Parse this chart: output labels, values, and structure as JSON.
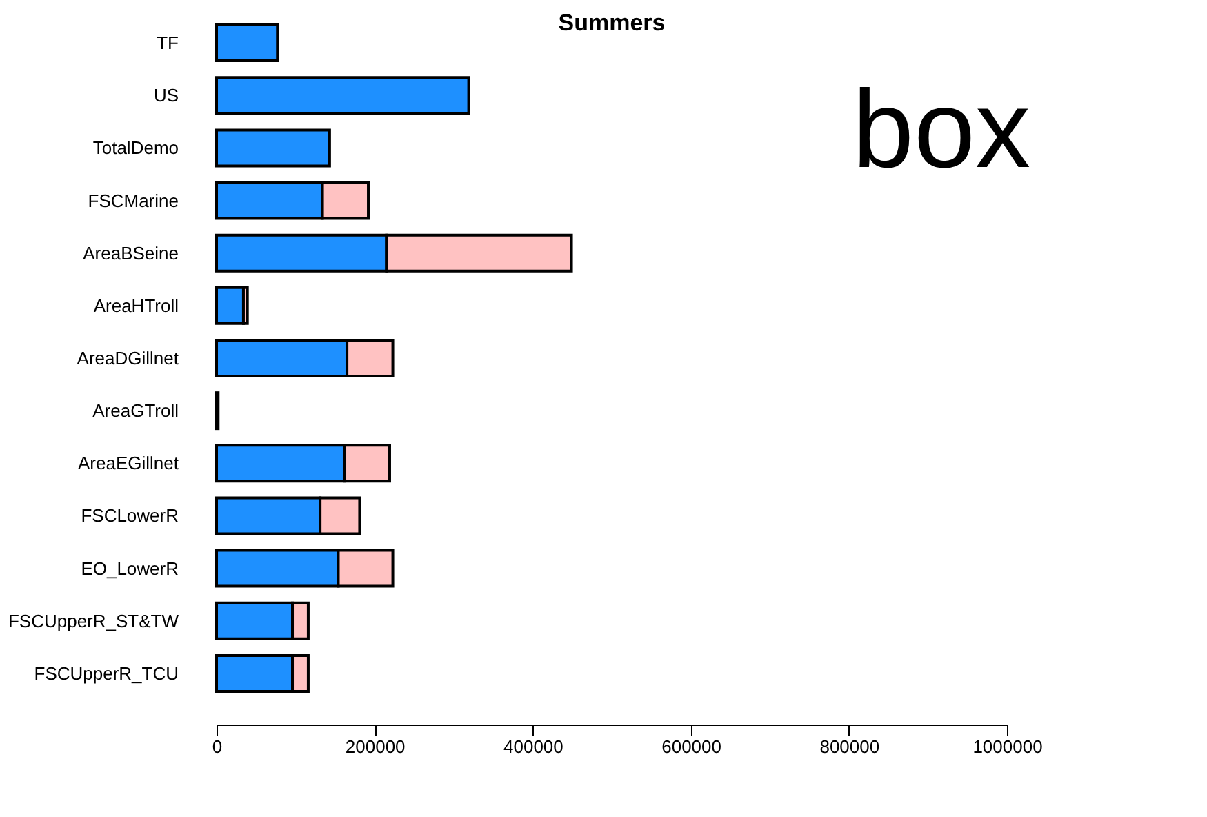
{
  "chart_data": {
    "type": "bar",
    "orientation": "horizontal",
    "stacked": true,
    "title": "Summers",
    "categories": [
      "TF",
      "US",
      "TotalDemo",
      "FSCMarine",
      "AreaBSeine",
      "AreaHTroll",
      "AreaDGillnet",
      "AreaGTroll",
      "AreaEGillnet",
      "FSCLowerR",
      "EO_LowerR",
      "FSCUpperR_ST&TW",
      "FSCUpperR_TCU"
    ],
    "series": [
      {
        "color": "#1e90ff",
        "values": [
          77000,
          319000,
          143000,
          134000,
          215000,
          34000,
          165000,
          2000,
          162000,
          131000,
          154000,
          96000,
          96000
        ]
      },
      {
        "color": "#ffc2c2",
        "values": [
          null,
          null,
          null,
          58000,
          234000,
          5000,
          58000,
          null,
          57000,
          50000,
          69000,
          20000,
          20000
        ]
      }
    ],
    "xlim": [
      0,
      1000000
    ],
    "xticks": [
      0,
      200000,
      400000,
      600000,
      800000,
      1000000
    ],
    "grid": false,
    "legend": false,
    "annotations": [
      "box"
    ]
  }
}
